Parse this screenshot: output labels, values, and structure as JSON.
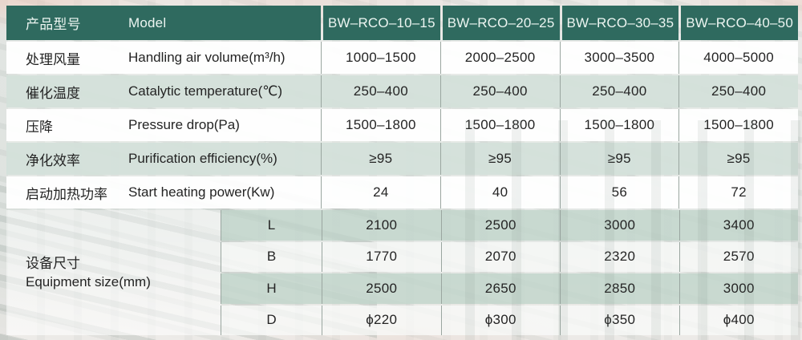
{
  "header": {
    "cn": "产品型号",
    "en": "Model",
    "models": [
      "BW–RCO–10–15",
      "BW–RCO–20–25",
      "BW–RCO–30–35",
      "BW–RCO–40–50"
    ]
  },
  "rows": [
    {
      "cn": "处理风量",
      "en": "Handling air volume(m³/h)",
      "values": [
        "1000–1500",
        "2000–2500",
        "3000–3500",
        "4000–5000"
      ]
    },
    {
      "cn": "催化温度",
      "en": "Catalytic temperature(℃)",
      "values": [
        "250–400",
        "250–400",
        "250–400",
        "250–400"
      ]
    },
    {
      "cn": "压降",
      "en": "Pressure drop(Pa)",
      "values": [
        "1500–1800",
        "1500–1800",
        "1500–1800",
        "1500–1800"
      ]
    },
    {
      "cn": "净化效率",
      "en": "Purification efficiency(%)",
      "values": [
        "≥95",
        "≥95",
        "≥95",
        "≥95"
      ]
    },
    {
      "cn": "启动加热功率",
      "en": "Start heating power(Kw)",
      "values": [
        "24",
        "40",
        "56",
        "72"
      ]
    }
  ],
  "equipment": {
    "cn": "设备尺寸",
    "en": "Equipment size(mm)",
    "dims": [
      {
        "label": "L",
        "values": [
          "2100",
          "2500",
          "3000",
          "3400"
        ]
      },
      {
        "label": "B",
        "values": [
          "1770",
          "2070",
          "2320",
          "2570"
        ]
      },
      {
        "label": "H",
        "values": [
          "2500",
          "2650",
          "2850",
          "3000"
        ]
      },
      {
        "label": "D",
        "values": [
          "ϕ220",
          "ϕ300",
          "ϕ350",
          "ϕ400"
        ]
      }
    ]
  },
  "colors": {
    "header_bg": "#2F6A5F",
    "header_text": "#ECF5F1",
    "row_green": "#D3E0DA",
    "divider": "#9AA6A0",
    "text": "#242424"
  }
}
